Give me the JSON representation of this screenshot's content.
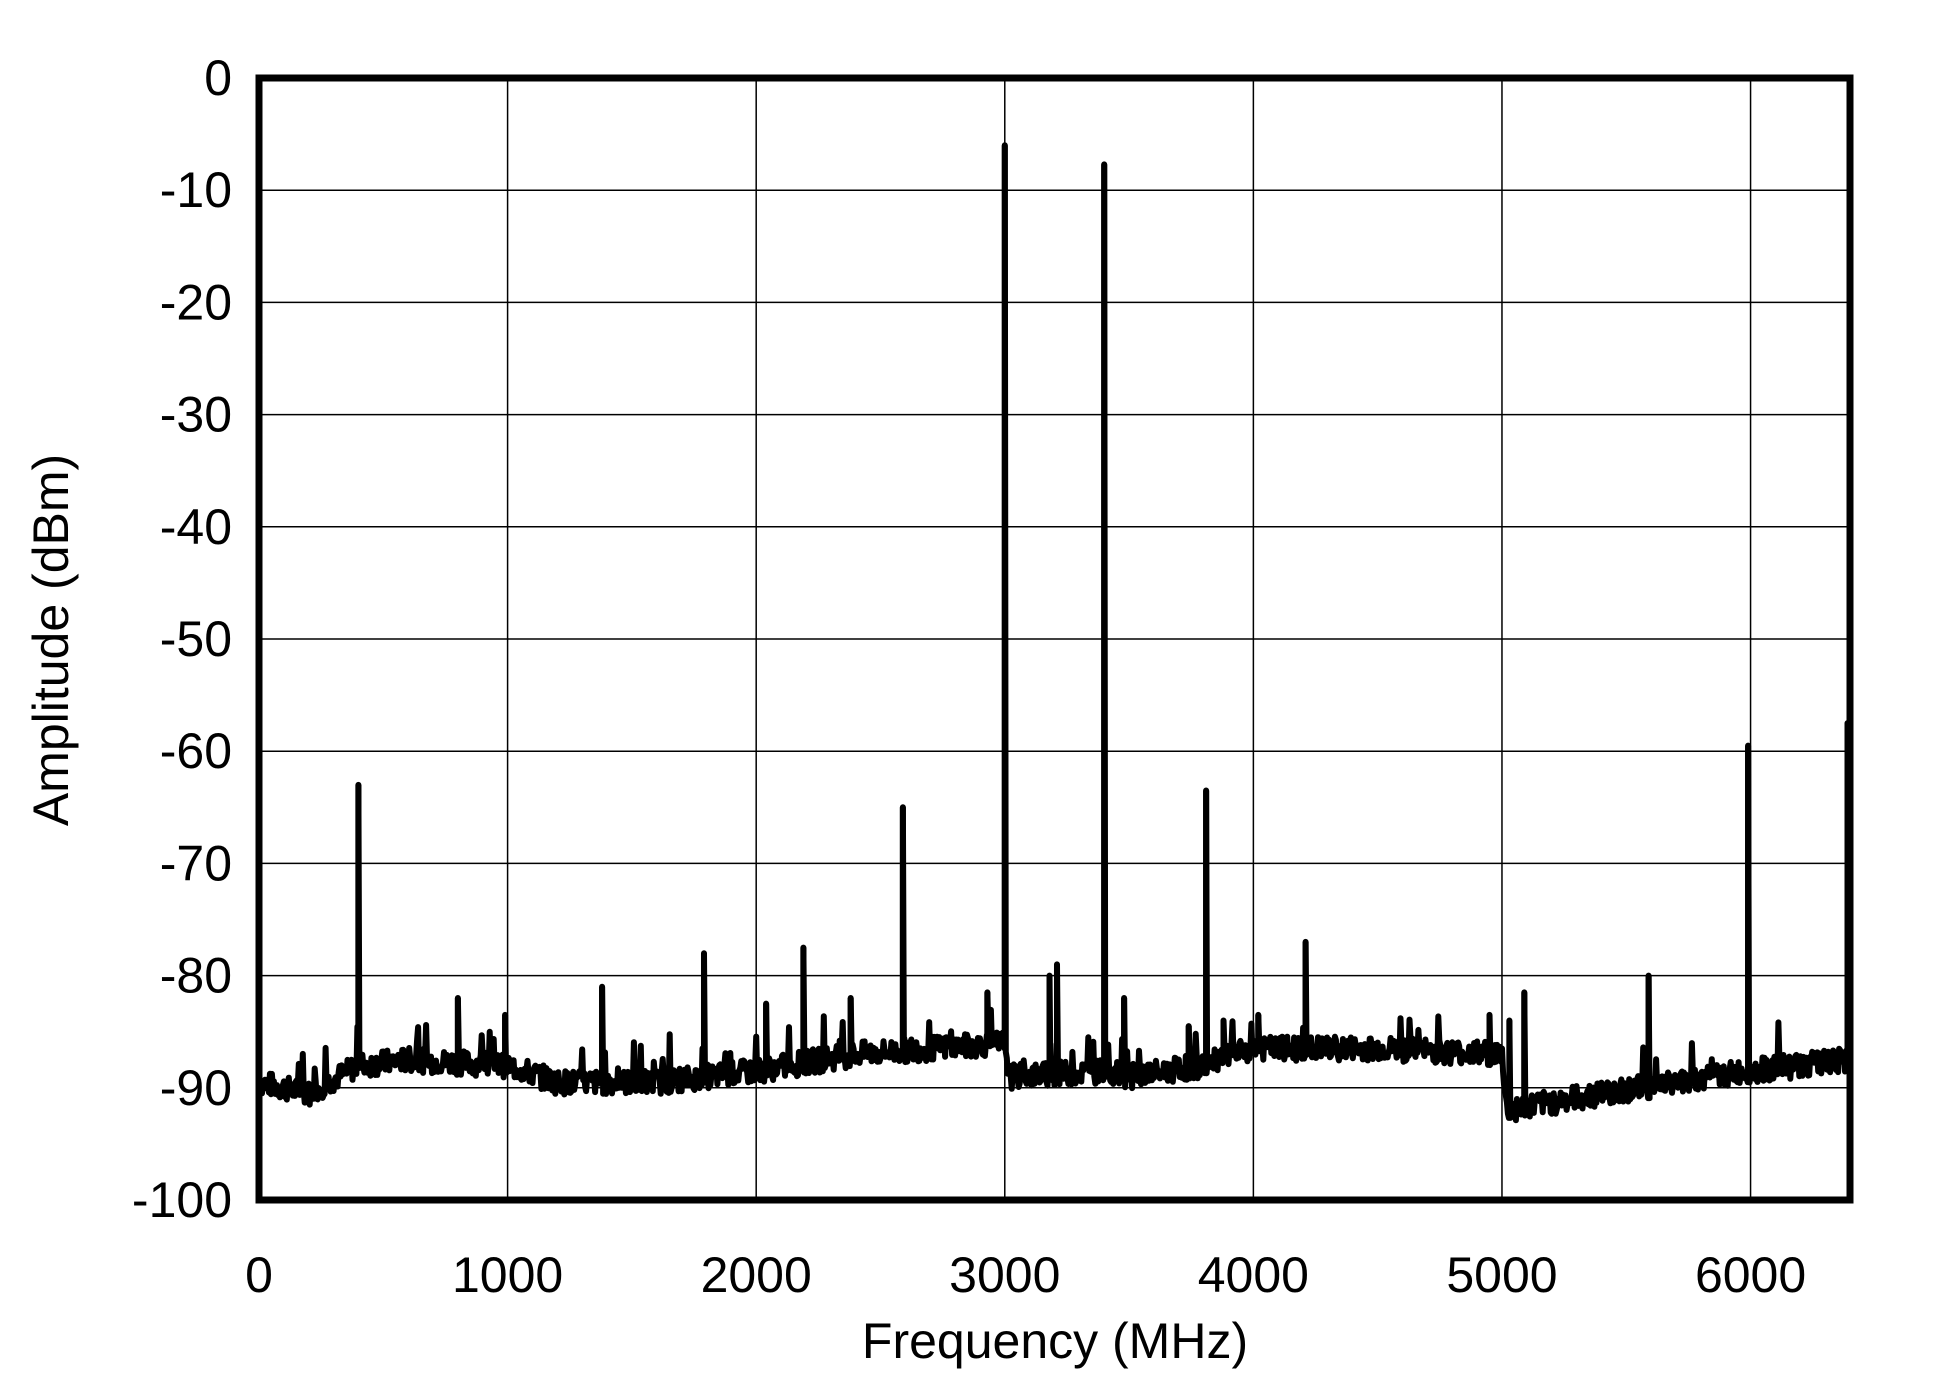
{
  "chart_data": {
    "type": "line",
    "title": "",
    "xlabel": "Frequency (MHz)",
    "ylabel": "Amplitude (dBm)",
    "xlim": [
      0,
      6400
    ],
    "ylim": [
      -100,
      0
    ],
    "xticks": [
      0,
      1000,
      2000,
      3000,
      4000,
      5000,
      6000
    ],
    "xtick_labels": [
      "0",
      "1000",
      "2000",
      "3000",
      "4000",
      "5000",
      "6000"
    ],
    "yticks": [
      0,
      -10,
      -20,
      -30,
      -40,
      -50,
      -60,
      -70,
      -80,
      -90,
      -100
    ],
    "ytick_labels": [
      "0",
      "-10",
      "-20",
      "-30",
      "-40",
      "-50",
      "-60",
      "-70",
      "-80",
      "-90",
      "-100"
    ],
    "grid": true,
    "line_color": "#000000",
    "noise_floor": {
      "x": [
        0,
        200,
        400,
        600,
        1000,
        1200,
        1600,
        2000,
        2400,
        3000,
        3020,
        3400,
        3500,
        3800,
        4000,
        4500,
        5000,
        5020,
        5400,
        6000,
        6400
      ],
      "y": [
        -89.5,
        -90.5,
        -88,
        -87.5,
        -88,
        -89.5,
        -89.5,
        -88.5,
        -87,
        -86,
        -89,
        -88.5,
        -89,
        -88,
        -86.5,
        -86.5,
        -87,
        -92,
        -90.5,
        -88.5,
        -87.5
      ]
    },
    "spurs": {
      "x": [
        400,
        800,
        990,
        1380,
        1790,
        2040,
        2190,
        2380,
        2590,
        2930,
        3000,
        3180,
        3210,
        3400,
        3480,
        3740,
        3810,
        3880,
        4020,
        4210,
        4950,
        5030,
        5090,
        5590,
        5990,
        6390
      ],
      "y": [
        -63,
        -82,
        -83.5,
        -81,
        -78,
        -82.5,
        -77.5,
        -82,
        -65,
        -81.5,
        -6,
        -80,
        -79,
        -7.7,
        -82,
        -84.5,
        -63.5,
        -84,
        -83.5,
        -77,
        -83.5,
        -84,
        -81.5,
        -80,
        -59.5,
        -57.5
      ]
    }
  }
}
